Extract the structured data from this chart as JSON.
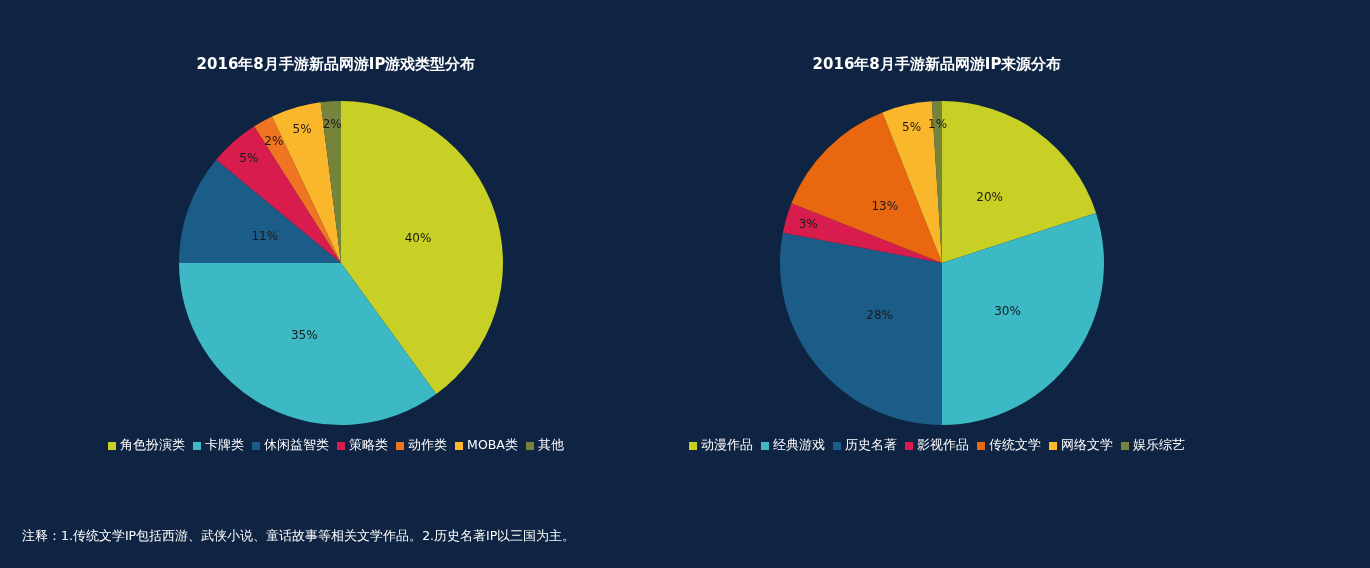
{
  "chart_data": [
    {
      "type": "pie",
      "title": "2016年8月手游新品网游IP游戏类型分布",
      "categories": [
        "角色扮演类",
        "卡牌类",
        "休闲益智类",
        "策略类",
        "动作类",
        "MOBA类",
        "其他"
      ],
      "values": [
        40,
        35,
        11,
        5,
        2,
        5,
        2
      ],
      "value_labels": [
        "40%",
        "35%",
        "11%",
        "5%",
        "2%",
        "5%",
        "2%"
      ],
      "colors": [
        "#c9d025",
        "#3cb9c4",
        "#1b5c88",
        "#d81d4e",
        "#ef7522",
        "#fbb72c",
        "#76833a"
      ],
      "legend": "bottom",
      "annotations": [
        "注释：1.传统文学IP包括西游、武侠小说、童话故事等相关文学作品。2.历史名著IP以三国为主。"
      ]
    },
    {
      "type": "pie",
      "title": "2016年8月手游新品网游IP来源分布",
      "categories": [
        "动漫作品",
        "经典游戏",
        "历史名著",
        "影视作品",
        "传统文学",
        "网络文学",
        "娱乐综艺"
      ],
      "values": [
        20,
        30,
        28,
        3,
        13,
        5,
        1
      ],
      "value_labels": [
        "20%",
        "30%",
        "28%",
        "3%",
        "13%",
        "5%",
        "1%"
      ],
      "colors": [
        "#c9d025",
        "#3cb9c4",
        "#1b5c88",
        "#d81d4e",
        "#e9680f",
        "#fbb72c",
        "#76833a"
      ],
      "legend": "bottom"
    }
  ]
}
